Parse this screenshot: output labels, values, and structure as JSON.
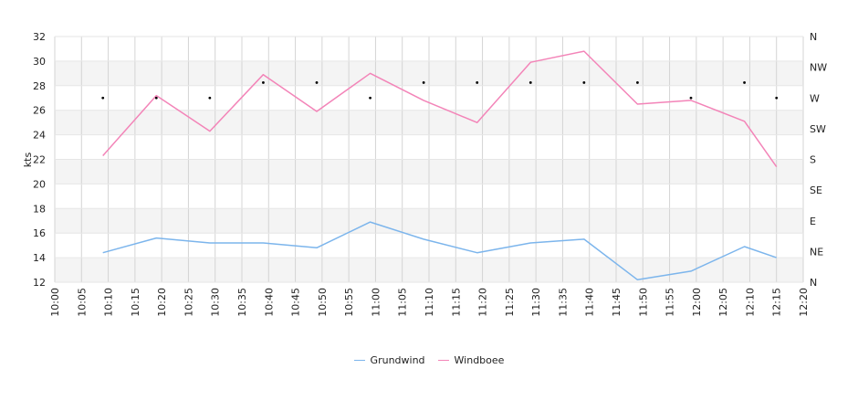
{
  "chart_data": {
    "type": "line",
    "title": "",
    "ylabel": "kts",
    "ylim": [
      12,
      32
    ],
    "yticks": [
      12,
      14,
      16,
      18,
      20,
      22,
      24,
      26,
      28,
      30,
      32
    ],
    "xticks": [
      "10:00",
      "10:05",
      "10:10",
      "10:15",
      "10:20",
      "10:25",
      "10:30",
      "10:35",
      "10:40",
      "10:45",
      "10:50",
      "10:55",
      "11:00",
      "11:05",
      "11:10",
      "11:15",
      "11:20",
      "11:25",
      "11:30",
      "11:35",
      "11:40",
      "11:45",
      "11:50",
      "11:55",
      "12:00",
      "12:05",
      "12:10",
      "12:15",
      "12:20"
    ],
    "xlim": [
      "10:00",
      "12:20"
    ],
    "right_axis_labels": [
      "N",
      "NE",
      "E",
      "SE",
      "S",
      "SW",
      "W",
      "NW",
      "N"
    ],
    "x": [
      "10:09",
      "10:19",
      "10:29",
      "10:39",
      "10:49",
      "10:59",
      "11:09",
      "11:19",
      "11:29",
      "11:39",
      "11:49",
      "11:59",
      "12:09",
      "12:15"
    ],
    "series": [
      {
        "name": "Grundwind",
        "color": "#7cb5ec",
        "values": [
          14.4,
          15.6,
          15.2,
          15.2,
          14.8,
          16.9,
          15.5,
          14.4,
          15.2,
          15.5,
          12.2,
          12.9,
          14.9,
          14.0
        ]
      },
      {
        "name": "Windboee",
        "color": "#f384b8",
        "values": [
          22.3,
          27.2,
          24.3,
          28.9,
          25.9,
          29.0,
          26.8,
          25.0,
          29.9,
          30.8,
          26.5,
          26.8,
          25.1,
          21.4
        ]
      }
    ],
    "direction_dots": {
      "x": [
        "10:09",
        "10:19",
        "10:29",
        "10:39",
        "10:49",
        "10:59",
        "11:09",
        "11:19",
        "11:29",
        "11:39",
        "11:49",
        "11:59",
        "12:09",
        "12:15"
      ],
      "direction": [
        "W",
        "W",
        "W",
        "WNW",
        "WNW",
        "W",
        "WNW",
        "WNW",
        "WNW",
        "WNW",
        "WNW",
        "W",
        "WNW",
        "W"
      ]
    },
    "grid": true,
    "legend": "bottom-center"
  }
}
